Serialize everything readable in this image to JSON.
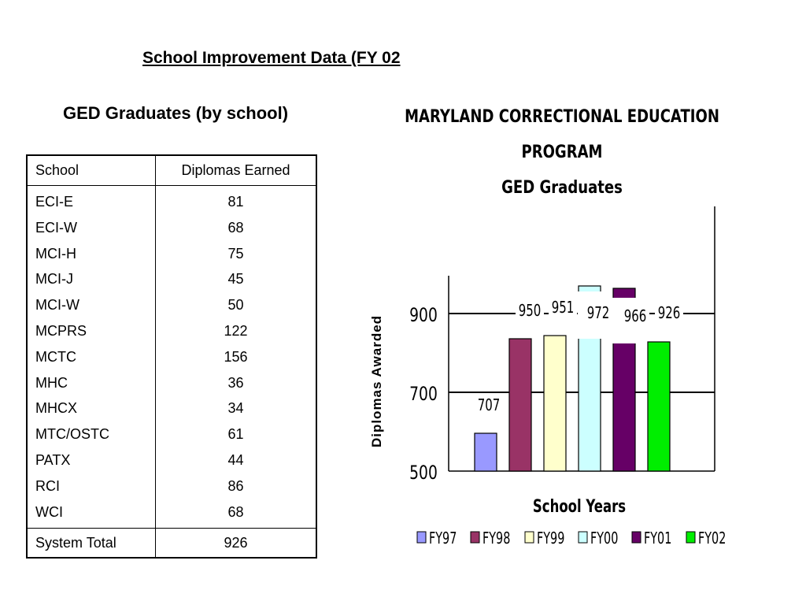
{
  "page": {
    "title": "School Improvement Data (FY 02",
    "table_title": "GED Graduates (by school)"
  },
  "table": {
    "headers": [
      "School",
      "Diplomas Earned"
    ],
    "rows": [
      [
        "ECI-E",
        "81"
      ],
      [
        "ECI-W",
        "68"
      ],
      [
        "MCI-H",
        "75"
      ],
      [
        "MCI-J",
        "45"
      ],
      [
        "MCI-W",
        "50"
      ],
      [
        "MCPRS",
        "122"
      ],
      [
        "MCTC",
        "156"
      ],
      [
        "MHC",
        "36"
      ],
      [
        "MHCX",
        "34"
      ],
      [
        "MTC/OSTC",
        "61"
      ],
      [
        "PATX",
        "44"
      ],
      [
        "RCI",
        "86"
      ],
      [
        "WCI",
        "68"
      ]
    ],
    "total_label": "System Total",
    "total_value": "926"
  },
  "chart_data": {
    "type": "bar",
    "title_lines": [
      "MARYLAND CORRECTIONAL EDUCATION",
      "PROGRAM",
      "GED Graduates"
    ],
    "xlabel": "School Years",
    "ylabel": "Diplomas Awarded",
    "categories": [
      "FY97",
      "FY98",
      "FY99",
      "FY00",
      "FY01",
      "FY02"
    ],
    "values": [
      707,
      950,
      951,
      972,
      966,
      926
    ],
    "colors": [
      "#9999ff",
      "#993366",
      "#ffffcc",
      "#ccffff",
      "#660066",
      "#00ee00"
    ],
    "yticks": [
      500,
      700,
      900
    ],
    "ylim": [
      500,
      1000
    ],
    "axis_break": true,
    "grid": true,
    "legend": "bottom"
  }
}
